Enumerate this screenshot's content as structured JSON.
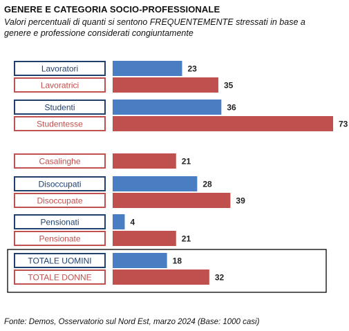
{
  "title": "GENERE E CATEGORIA SOCIO-PROFESSIONALE",
  "subtitle": "Valori percentuali di quanti si sentono FREQUENTEMENTE stressati in base a genere e professione considerati congiuntamente",
  "source": "Fonte: Demos, Osservatorio sul Nord Est, marzo 2024 (Base: 1000 casi)",
  "colors": {
    "male": "#4A7EC2",
    "female": "#C0504D",
    "male_border": "#1F3F6E",
    "female_border": "#C0504D"
  },
  "chart_data": {
    "type": "bar",
    "orientation": "horizontal",
    "groups": [
      {
        "rows": [
          {
            "label": "Lavoratori",
            "value": 23,
            "series": "male"
          },
          {
            "label": "Lavoratrici",
            "value": 35,
            "series": "female"
          }
        ]
      },
      {
        "rows": [
          {
            "label": "Studenti",
            "value": 36,
            "series": "male"
          },
          {
            "label": "Studentesse",
            "value": 73,
            "series": "female"
          }
        ]
      },
      {
        "rows": [
          {
            "label": "Casalinghe",
            "value": 21,
            "series": "female"
          }
        ]
      },
      {
        "rows": [
          {
            "label": "Disoccupati",
            "value": 28,
            "series": "male"
          },
          {
            "label": "Disoccupate",
            "value": 39,
            "series": "female"
          }
        ]
      },
      {
        "rows": [
          {
            "label": "Pensionati",
            "value": 4,
            "series": "male"
          },
          {
            "label": "Pensionate",
            "value": 21,
            "series": "female"
          }
        ]
      },
      {
        "highlighted": true,
        "rows": [
          {
            "label": "TOTALE UOMINI",
            "value": 18,
            "series": "male"
          },
          {
            "label": "TOTALE DONNE",
            "value": 32,
            "series": "female"
          }
        ]
      }
    ]
  }
}
